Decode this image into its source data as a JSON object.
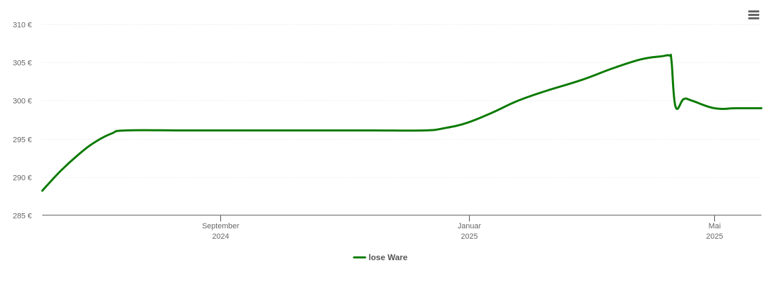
{
  "menu": {
    "icon": "hamburger-menu-icon"
  },
  "chart_data": {
    "type": "line",
    "title": "",
    "xlabel": "",
    "ylabel": "",
    "ylim": [
      285,
      310
    ],
    "y_ticks": [
      285,
      290,
      295,
      300,
      305,
      310
    ],
    "y_tick_labels": [
      "285 €",
      "290 €",
      "295 €",
      "300 €",
      "305 €",
      "310 €"
    ],
    "x_range": [
      "2024-06-06",
      "2025-05-24"
    ],
    "x_ticks": [
      {
        "date": "2024-09-01",
        "month": "September",
        "year": "2024"
      },
      {
        "date": "2025-01-01",
        "month": "Januar",
        "year": "2025"
      },
      {
        "date": "2025-05-01",
        "month": "Mai",
        "year": "2025"
      }
    ],
    "grid": true,
    "legend_position": "bottom",
    "series": [
      {
        "name": "lose Ware",
        "color": "#0a7a00",
        "points": [
          {
            "x": "2024-06-06",
            "y": 288.2
          },
          {
            "x": "2024-06-15",
            "y": 290.8
          },
          {
            "x": "2024-06-24",
            "y": 293.0
          },
          {
            "x": "2024-07-02",
            "y": 294.6
          },
          {
            "x": "2024-07-10",
            "y": 295.7
          },
          {
            "x": "2024-07-17",
            "y": 296.1
          },
          {
            "x": "2024-08-15",
            "y": 296.1
          },
          {
            "x": "2024-09-15",
            "y": 296.1
          },
          {
            "x": "2024-10-15",
            "y": 296.1
          },
          {
            "x": "2024-11-15",
            "y": 296.1
          },
          {
            "x": "2024-12-10",
            "y": 296.1
          },
          {
            "x": "2024-12-20",
            "y": 296.4
          },
          {
            "x": "2024-12-31",
            "y": 297.1
          },
          {
            "x": "2025-01-12",
            "y": 298.4
          },
          {
            "x": "2025-01-25",
            "y": 300.0
          },
          {
            "x": "2025-02-08",
            "y": 301.3
          },
          {
            "x": "2025-02-25",
            "y": 302.7
          },
          {
            "x": "2025-03-12",
            "y": 304.2
          },
          {
            "x": "2025-03-26",
            "y": 305.4
          },
          {
            "x": "2025-04-05",
            "y": 305.8
          },
          {
            "x": "2025-04-09",
            "y": 305.9
          },
          {
            "x": "2025-04-10",
            "y": 305.2
          },
          {
            "x": "2025-04-12",
            "y": 299.2
          },
          {
            "x": "2025-04-16",
            "y": 300.2
          },
          {
            "x": "2025-04-20",
            "y": 300.0
          },
          {
            "x": "2025-05-01",
            "y": 299.0
          },
          {
            "x": "2025-05-12",
            "y": 299.0
          },
          {
            "x": "2025-05-24",
            "y": 299.0
          }
        ]
      }
    ]
  }
}
